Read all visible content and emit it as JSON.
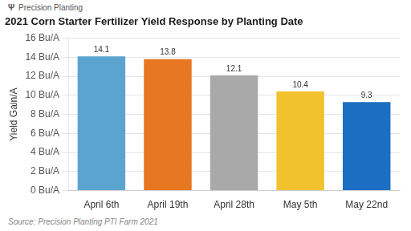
{
  "chart_data": {
    "type": "bar",
    "title": "2021 Corn Starter Fertilizer Yield Response by Planting Date",
    "annotations": [
      "Ψ",
      "Precision Planting",
      "Source: Precision Planting PTI Farm 2021"
    ],
    "ylabel": "Yield Gain/A",
    "categories": [
      "April 6th",
      "April 19th",
      "April 28th",
      "May 5th",
      "May 22nd"
    ],
    "values": [
      14.1,
      13.8,
      12.1,
      10.4,
      9.3
    ],
    "colors": [
      "#5BA4CF",
      "#E87722",
      "#A9A9A9",
      "#F2C12E",
      "#1B6EC2"
    ],
    "ylim": [
      0,
      16
    ],
    "yticks": [
      {
        "value": 0,
        "label": "0 Bu/A"
      },
      {
        "value": 2,
        "label": "2 Bu/A"
      },
      {
        "value": 4,
        "label": "4 Bu/A"
      },
      {
        "value": 6,
        "label": "6 Bu/A"
      },
      {
        "value": 8,
        "label": "8 Bu/A"
      },
      {
        "value": 10,
        "label": "10 Bu/A"
      },
      {
        "value": 12,
        "label": "12 Bu/A"
      },
      {
        "value": 14,
        "label": "14 Bu/A"
      },
      {
        "value": 16,
        "label": "16 Bu/A"
      }
    ],
    "grid": true,
    "data_labels": true
  }
}
